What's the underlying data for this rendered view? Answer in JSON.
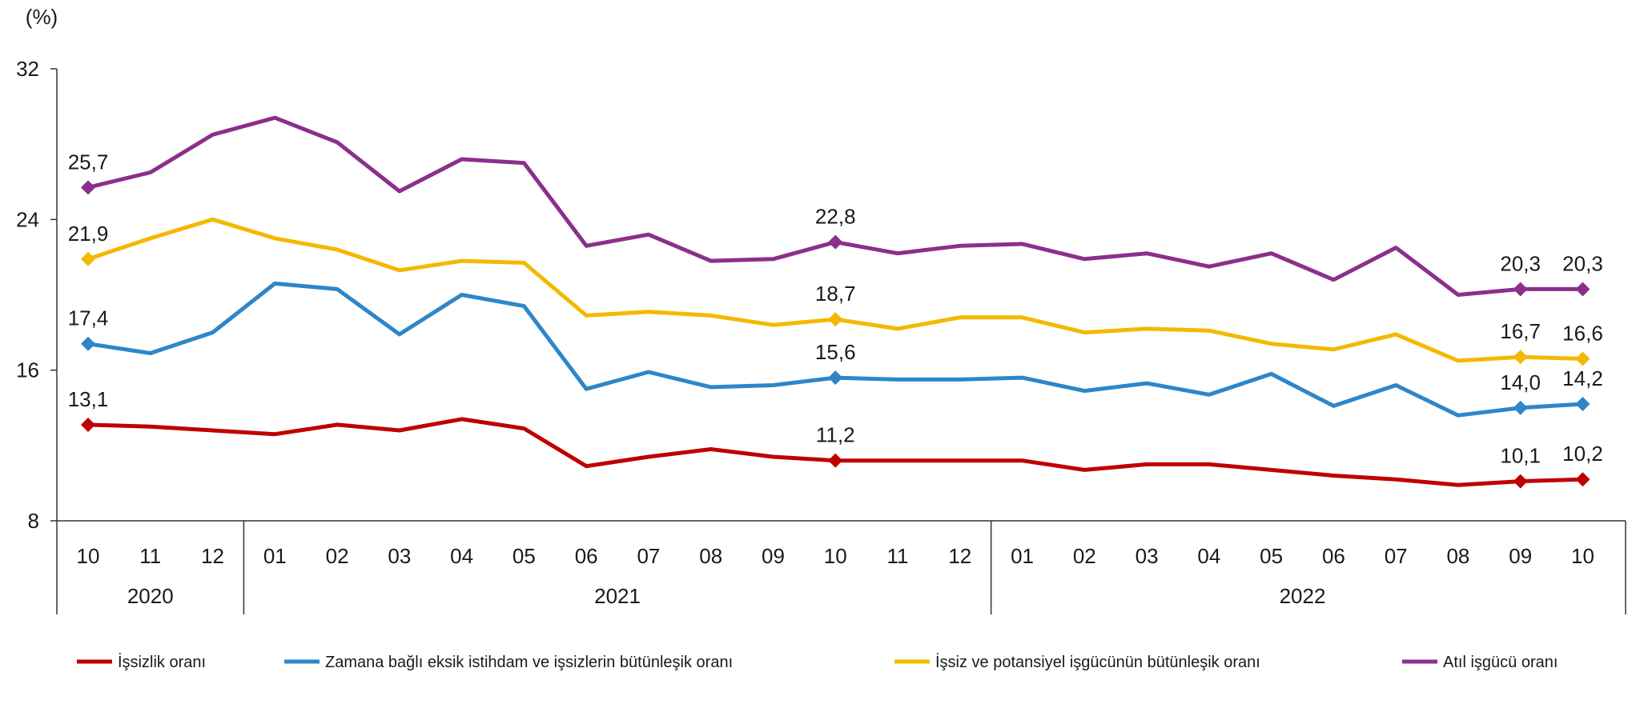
{
  "chart_data": {
    "type": "line",
    "ylabel": "(%)",
    "ylim": [
      8,
      32
    ],
    "yticks": [
      8,
      16,
      24,
      32
    ],
    "categories": [
      "10",
      "11",
      "12",
      "01",
      "02",
      "03",
      "04",
      "05",
      "06",
      "07",
      "08",
      "09",
      "10",
      "11",
      "12",
      "01",
      "02",
      "03",
      "04",
      "05",
      "06",
      "07",
      "08",
      "09",
      "10"
    ],
    "years": [
      {
        "label": "2020",
        "start": 0,
        "end": 2
      },
      {
        "label": "2021",
        "start": 3,
        "end": 14
      },
      {
        "label": "2022",
        "start": 15,
        "end": 24
      }
    ],
    "series": [
      {
        "name": "İşsizlik oranı",
        "color": "#c00000",
        "values": [
          13.1,
          13.0,
          12.8,
          12.6,
          13.1,
          12.8,
          13.4,
          12.9,
          10.9,
          11.4,
          11.8,
          11.4,
          11.2,
          11.2,
          11.2,
          11.2,
          10.7,
          11.0,
          11.0,
          10.7,
          10.4,
          10.2,
          9.9,
          10.1,
          10.2
        ],
        "markers": [
          0,
          12,
          23,
          24
        ],
        "labels": [
          {
            "index": 0,
            "text": "13,1"
          },
          {
            "index": 12,
            "text": "11,2"
          },
          {
            "index": 23,
            "text": "10,1"
          },
          {
            "index": 24,
            "text": "10,2"
          }
        ]
      },
      {
        "name": "Zamana bağlı eksik istihdam ve işsizlerin bütünleşik oranı",
        "color": "#2e86c8",
        "values": [
          17.4,
          16.9,
          18.0,
          20.6,
          20.3,
          17.9,
          20.0,
          19.4,
          15.0,
          15.9,
          15.1,
          15.2,
          15.6,
          15.5,
          15.5,
          15.6,
          14.9,
          15.3,
          14.7,
          15.8,
          14.1,
          15.2,
          13.6,
          14.0,
          14.2
        ],
        "markers": [
          0,
          12,
          23,
          24
        ],
        "labels": [
          {
            "index": 0,
            "text": "17,4"
          },
          {
            "index": 12,
            "text": "15,6"
          },
          {
            "index": 23,
            "text": "14,0"
          },
          {
            "index": 24,
            "text": "14,2"
          }
        ]
      },
      {
        "name": "İşsiz ve potansiyel işgücünün bütünleşik oranı",
        "color": "#f5b800",
        "values": [
          21.9,
          23.0,
          24.0,
          23.0,
          22.4,
          21.3,
          21.8,
          21.7,
          18.9,
          19.1,
          18.9,
          18.4,
          18.7,
          18.2,
          18.8,
          18.8,
          18.0,
          18.2,
          18.1,
          17.4,
          17.1,
          17.9,
          16.5,
          16.7,
          16.6
        ],
        "markers": [
          0,
          12,
          23,
          24
        ],
        "labels": [
          {
            "index": 0,
            "text": "21,9"
          },
          {
            "index": 12,
            "text": "18,7"
          },
          {
            "index": 23,
            "text": "16,7"
          },
          {
            "index": 24,
            "text": "16,6"
          }
        ]
      },
      {
        "name": "Atıl işgücü oranı",
        "color": "#8b2f8c",
        "values": [
          25.7,
          26.5,
          28.5,
          29.4,
          28.1,
          25.5,
          27.2,
          27.0,
          22.6,
          23.2,
          21.8,
          21.9,
          22.8,
          22.2,
          22.6,
          22.7,
          21.9,
          22.2,
          21.5,
          22.2,
          20.8,
          22.5,
          20.0,
          20.3,
          20.3
        ],
        "markers": [
          0,
          12,
          23,
          24
        ],
        "labels": [
          {
            "index": 0,
            "text": "25,7"
          },
          {
            "index": 12,
            "text": "22,8"
          },
          {
            "index": 23,
            "text": "20,3"
          },
          {
            "index": 24,
            "text": "20,3"
          }
        ]
      }
    ],
    "legend_position": "bottom"
  }
}
